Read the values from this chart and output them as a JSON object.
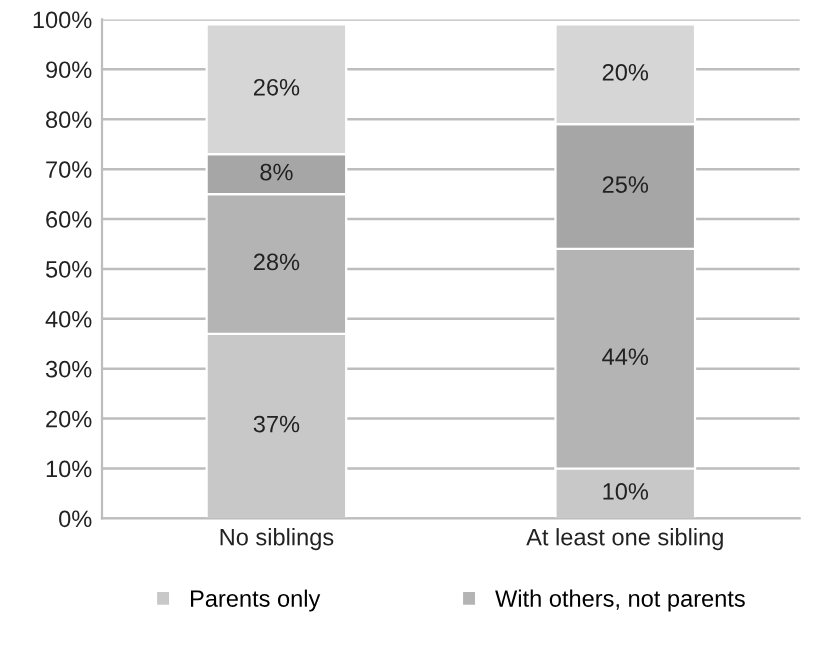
{
  "chart_data": {
    "type": "bar",
    "stacked": true,
    "categories": [
      "No siblings",
      "At least one sibling"
    ],
    "series": [
      {
        "name": "Parents only",
        "color": "#c8c8c8",
        "values": [
          37,
          10
        ],
        "value_labels": [
          "37%",
          "10%"
        ]
      },
      {
        "name": "With others, not parents",
        "color": "#b4b4b4",
        "values": [
          28,
          44
        ],
        "value_labels": [
          "28%",
          "44%"
        ]
      },
      {
        "color": "#a6a6a6",
        "values": [
          8,
          25
        ],
        "value_labels": [
          "8%",
          "25%"
        ]
      },
      {
        "color": "#d6d6d6",
        "values": [
          26,
          20
        ],
        "value_labels": [
          "26%",
          "20%"
        ]
      }
    ],
    "ylim": [
      0,
      100
    ],
    "yticks": [
      {
        "value": 0,
        "label": "0%"
      },
      {
        "value": 10,
        "label": "10%"
      },
      {
        "value": 20,
        "label": "20%"
      },
      {
        "value": 30,
        "label": "30%"
      },
      {
        "value": 40,
        "label": "40%"
      },
      {
        "value": 50,
        "label": "50%"
      },
      {
        "value": 60,
        "label": "60%"
      },
      {
        "value": 70,
        "label": "70%"
      },
      {
        "value": 80,
        "label": "80%"
      },
      {
        "value": 90,
        "label": "90%"
      },
      {
        "value": 100,
        "label": "100%"
      }
    ],
    "grid": "y",
    "legend": "bottom"
  }
}
